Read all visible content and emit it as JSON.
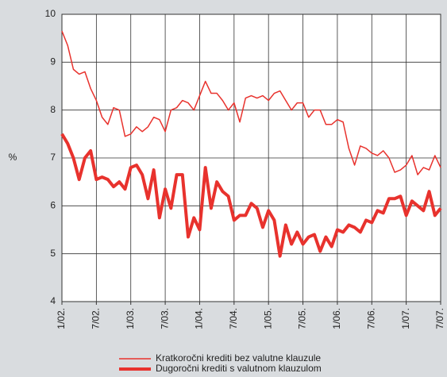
{
  "chart_data": {
    "type": "line",
    "y_label": "%",
    "categories": [
      "1/02.",
      null,
      null,
      null,
      null,
      null,
      "7/02.",
      null,
      null,
      null,
      null,
      null,
      "1/03.",
      null,
      null,
      null,
      null,
      null,
      "7/03.",
      null,
      null,
      null,
      null,
      null,
      "1/04.",
      null,
      null,
      null,
      null,
      null,
      "7/04.",
      null,
      null,
      null,
      null,
      null,
      "1/05.",
      null,
      null,
      null,
      null,
      null,
      "7/05.",
      null,
      null,
      null,
      null,
      null,
      "1/06.",
      null,
      null,
      null,
      null,
      null,
      "7/06.",
      null,
      null,
      null,
      null,
      null,
      "1/07.",
      null,
      null,
      null,
      null,
      null,
      "7/07."
    ],
    "series": [
      {
        "name": "Kratkoročni krediti bez valutne klauzule",
        "color": "#e8322d",
        "width": 1.5,
        "values": [
          9.65,
          9.35,
          8.85,
          8.75,
          8.8,
          8.45,
          8.2,
          7.85,
          7.7,
          8.05,
          8.0,
          7.45,
          7.5,
          7.65,
          7.55,
          7.65,
          7.85,
          7.8,
          7.55,
          8.0,
          8.05,
          8.2,
          8.15,
          8.0,
          8.3,
          8.6,
          8.35,
          8.35,
          8.2,
          8.0,
          8.15,
          7.75,
          8.25,
          8.3,
          8.25,
          8.3,
          8.2,
          8.35,
          8.4,
          8.2,
          8.0,
          8.15,
          8.15,
          7.85,
          8.0,
          8.0,
          7.7,
          7.7,
          7.8,
          7.75,
          7.2,
          6.85,
          7.25,
          7.2,
          7.1,
          7.05,
          7.15,
          7.0,
          6.7,
          6.75,
          6.85,
          7.05,
          6.65,
          6.8,
          6.75,
          7.05,
          6.8
        ]
      },
      {
        "name": "Dugoročni krediti s valutnom klauzulom",
        "color": "#e8322d",
        "width": 4,
        "values": [
          7.5,
          7.3,
          7.0,
          6.55,
          7.0,
          7.15,
          6.55,
          6.6,
          6.55,
          6.4,
          6.5,
          6.35,
          6.8,
          6.85,
          6.65,
          6.15,
          6.75,
          5.75,
          6.35,
          5.95,
          6.65,
          6.65,
          5.35,
          5.75,
          5.5,
          6.8,
          5.95,
          6.5,
          6.3,
          6.2,
          5.7,
          5.8,
          5.8,
          6.05,
          5.95,
          5.55,
          5.9,
          5.7,
          4.95,
          5.6,
          5.2,
          5.45,
          5.2,
          5.35,
          5.4,
          5.05,
          5.35,
          5.15,
          5.5,
          5.45,
          5.6,
          5.55,
          5.45,
          5.7,
          5.65,
          5.9,
          5.85,
          6.15,
          6.15,
          6.2,
          5.8,
          6.1,
          6.0,
          5.9,
          6.3,
          5.8,
          5.95
        ]
      }
    ],
    "ylim": [
      4,
      10
    ],
    "yticks": [
      4,
      5,
      6,
      7,
      8,
      9,
      10
    ],
    "grid": true
  }
}
